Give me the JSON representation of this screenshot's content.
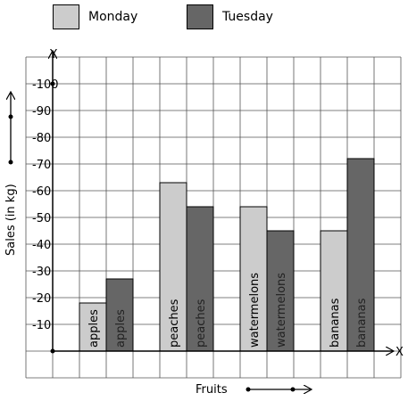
{
  "chart_data": {
    "type": "bar",
    "categories": [
      "apples",
      "peaches",
      "watermelons",
      "bananas"
    ],
    "series": [
      {
        "name": "Monday",
        "values": [
          18,
          63,
          54,
          45
        ],
        "color": "#cccccc"
      },
      {
        "name": "Tuesday",
        "values": [
          27,
          54,
          45,
          72
        ],
        "color": "#666666"
      }
    ],
    "xlabel": "Fruits",
    "ylabel": "Sales (in kg)",
    "x_axis_letter": "X",
    "y_axis_letter": "Y",
    "ylim": [
      0,
      100
    ],
    "yticks": [
      10,
      20,
      30,
      40,
      50,
      60,
      70,
      80,
      90,
      100
    ],
    "ytick_prefix": "-",
    "grid": true,
    "legend_position": "top",
    "bar_labels": "category names written vertically inside each bar"
  }
}
